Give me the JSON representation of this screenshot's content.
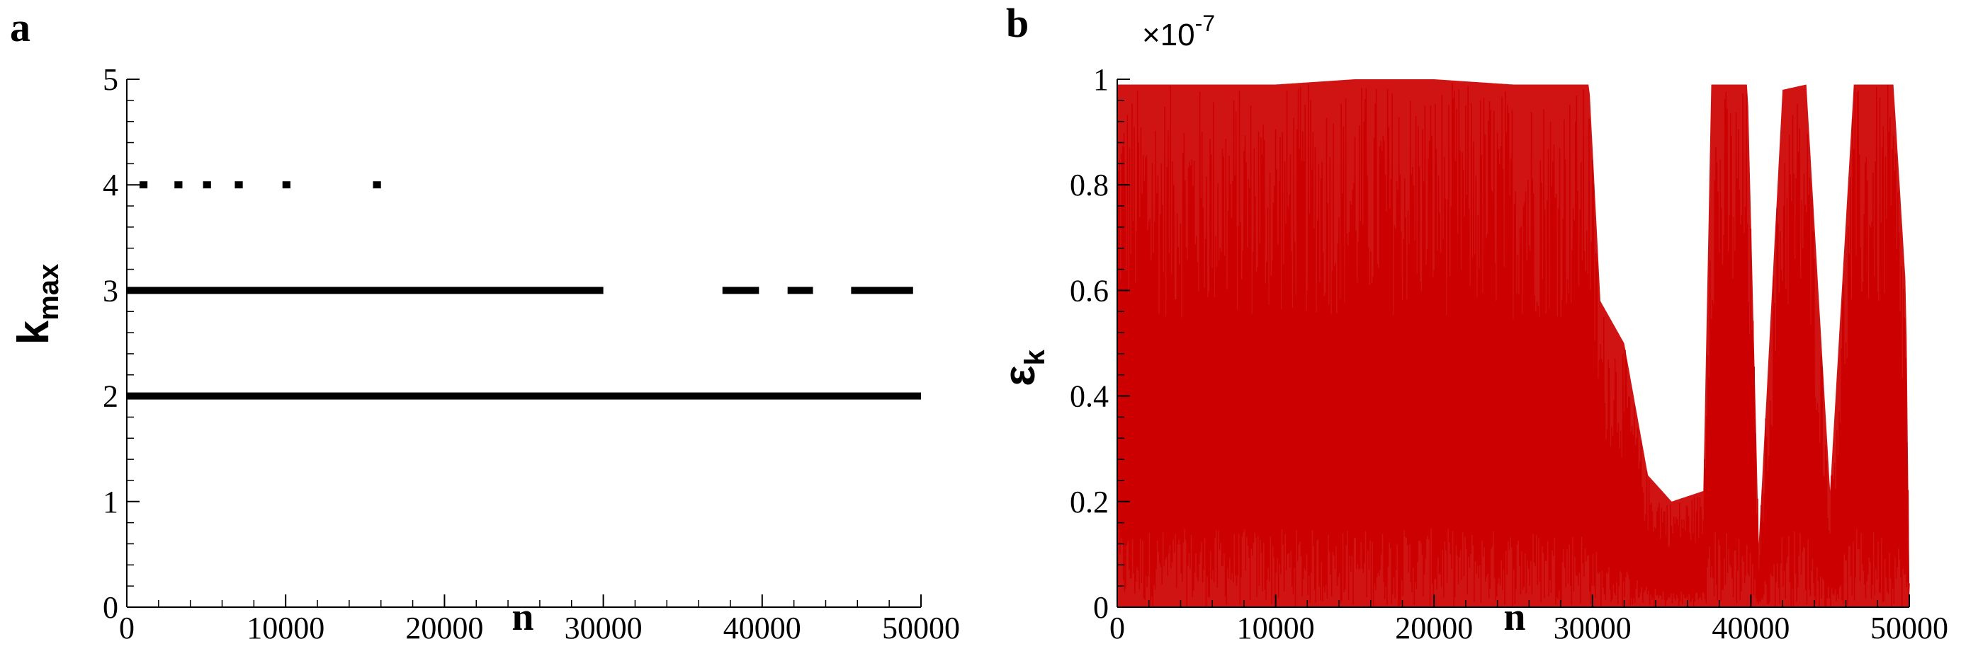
{
  "chart_data": [
    {
      "panel": "a",
      "type": "scatter",
      "xlabel": "n",
      "ylabel": {
        "main": "k",
        "sub": "max"
      },
      "xlim": [
        0,
        50000
      ],
      "ylim": [
        0,
        5
      ],
      "xticks": [
        0,
        10000,
        20000,
        30000,
        40000,
        50000
      ],
      "yticks": [
        0,
        1,
        2,
        3,
        4,
        5
      ],
      "grid": false,
      "color": "#000000",
      "series": [
        {
          "y": 2,
          "x_ranges": [
            [
              0,
              50000
            ]
          ]
        },
        {
          "y": 3,
          "x_ranges": [
            [
              0,
              30000
            ],
            [
              37500,
              39800
            ],
            [
              41600,
              43200
            ],
            [
              45600,
              49500
            ]
          ]
        },
        {
          "y": 4,
          "x_ranges": [
            [
              800,
              1300
            ],
            [
              3000,
              3500
            ],
            [
              4800,
              5300
            ],
            [
              6800,
              7300
            ],
            [
              9800,
              10300
            ],
            [
              15500,
              16000
            ]
          ]
        }
      ]
    },
    {
      "panel": "b",
      "type": "line",
      "xlabel": "n",
      "ylabel": {
        "main": "ε",
        "sub": "k"
      },
      "multiplier": {
        "base": "×10",
        "exponent": "-7"
      },
      "xlim": [
        0,
        50000
      ],
      "ylim": [
        0,
        1
      ],
      "xticks": [
        0,
        10000,
        20000,
        30000,
        40000,
        50000
      ],
      "yticks": [
        "0",
        "0.2",
        "0.4",
        "0.6",
        "0.8",
        "1"
      ],
      "grid": false,
      "color": "#cc0000",
      "envelope": {
        "x": [
          0,
          2000,
          5000,
          10000,
          15000,
          20000,
          25000,
          28000,
          29800,
          30500,
          32000,
          33500,
          35000,
          37000,
          37500,
          39800,
          40500,
          42000,
          43500,
          45000,
          46500,
          49000,
          49800,
          50000
        ],
        "upper": [
          0.99,
          0.99,
          0.99,
          0.99,
          1.0,
          1.0,
          0.99,
          0.99,
          0.99,
          0.58,
          0.5,
          0.25,
          0.2,
          0.22,
          0.99,
          0.99,
          0.12,
          0.98,
          0.99,
          0.22,
          0.99,
          0.99,
          0.6,
          0.05
        ],
        "lower": [
          0.0,
          0.0,
          0.0,
          0.0,
          0.0,
          0.0,
          0.0,
          0.0,
          0.0,
          0.0,
          0.0,
          0.0,
          0.0,
          0.0,
          0.0,
          0.0,
          0.0,
          0.0,
          0.0,
          0.0,
          0.0,
          0.0,
          0.0,
          0.0
        ]
      }
    }
  ]
}
